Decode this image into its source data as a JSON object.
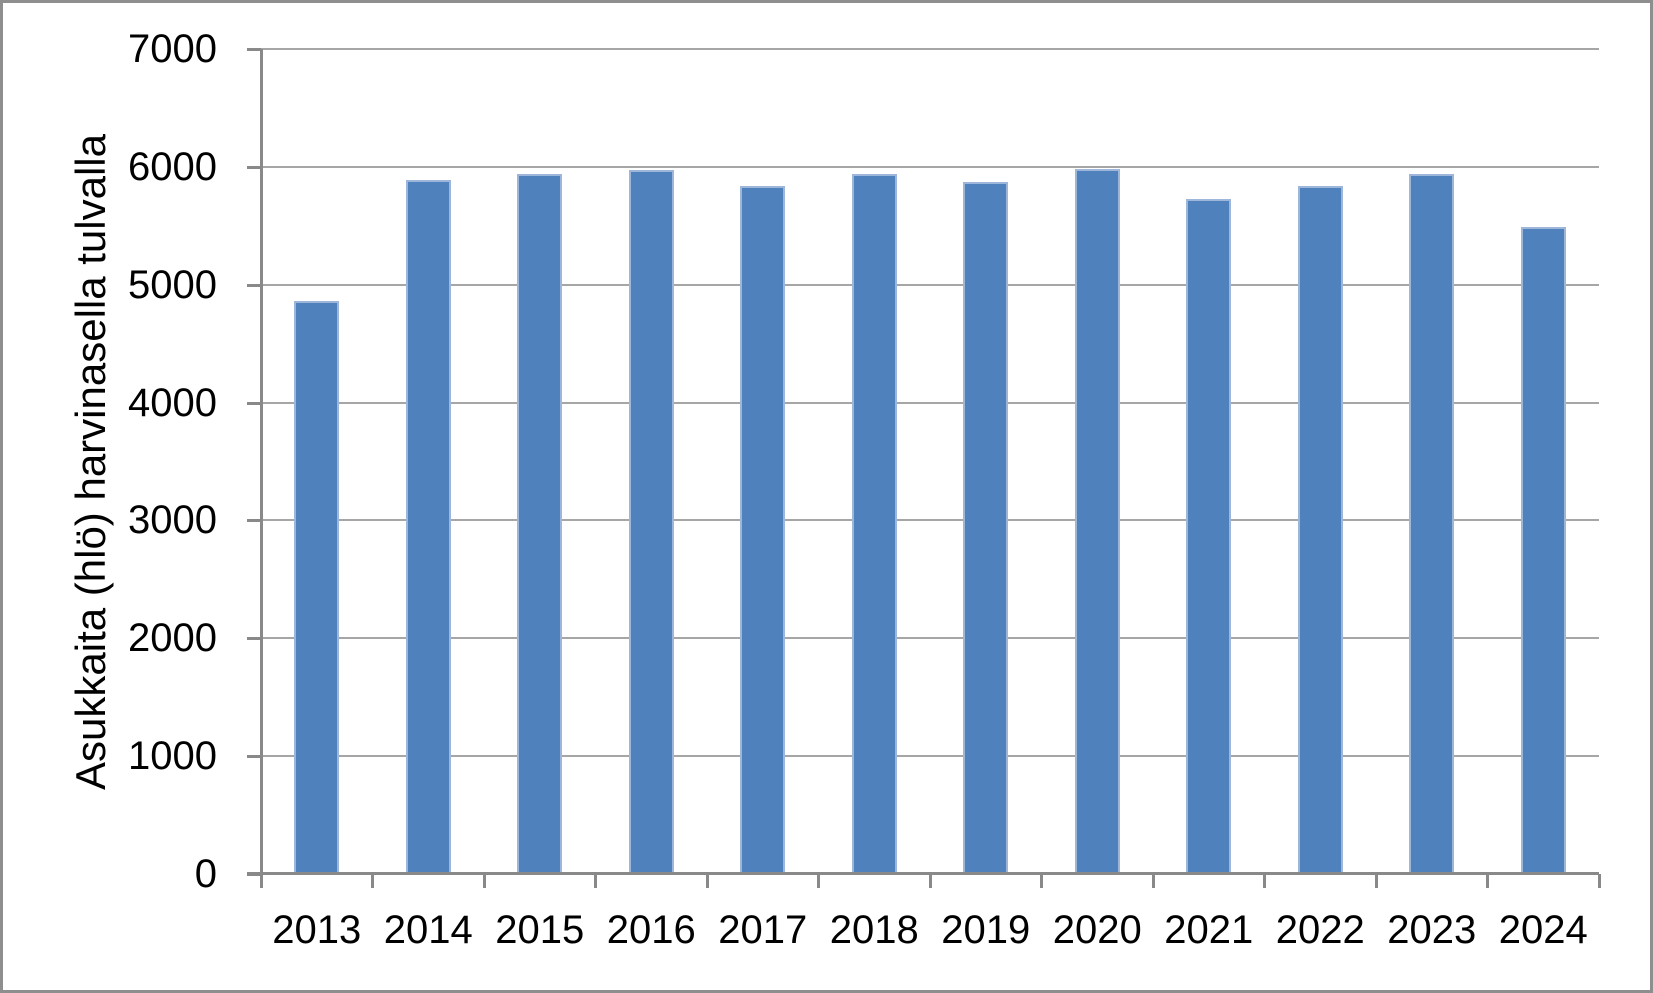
{
  "chart_data": {
    "type": "bar",
    "categories": [
      "2013",
      "2014",
      "2015",
      "2016",
      "2017",
      "2018",
      "2019",
      "2020",
      "2021",
      "2022",
      "2023",
      "2024"
    ],
    "values": [
      4860,
      5890,
      5940,
      5970,
      5840,
      5940,
      5870,
      5980,
      5730,
      5840,
      5940,
      5490
    ],
    "title": "",
    "xlabel": "",
    "ylabel": "Asukkaita (hlö) harvinasella tulvalla",
    "ylim": [
      0,
      7000
    ],
    "ytick_step": 1000,
    "ytick_labels": [
      "0",
      "1000",
      "2000",
      "3000",
      "4000",
      "5000",
      "6000",
      "7000"
    ],
    "grid": true,
    "legend_position": "none",
    "colors": {
      "bar_fill": "#4f81bd",
      "bar_edge": "#9db6d9",
      "gridline": "#a6a6a6",
      "axis_line": "#898989",
      "frame_border": "#8e8e8e",
      "text": "#000000",
      "background": "#ffffff"
    }
  }
}
